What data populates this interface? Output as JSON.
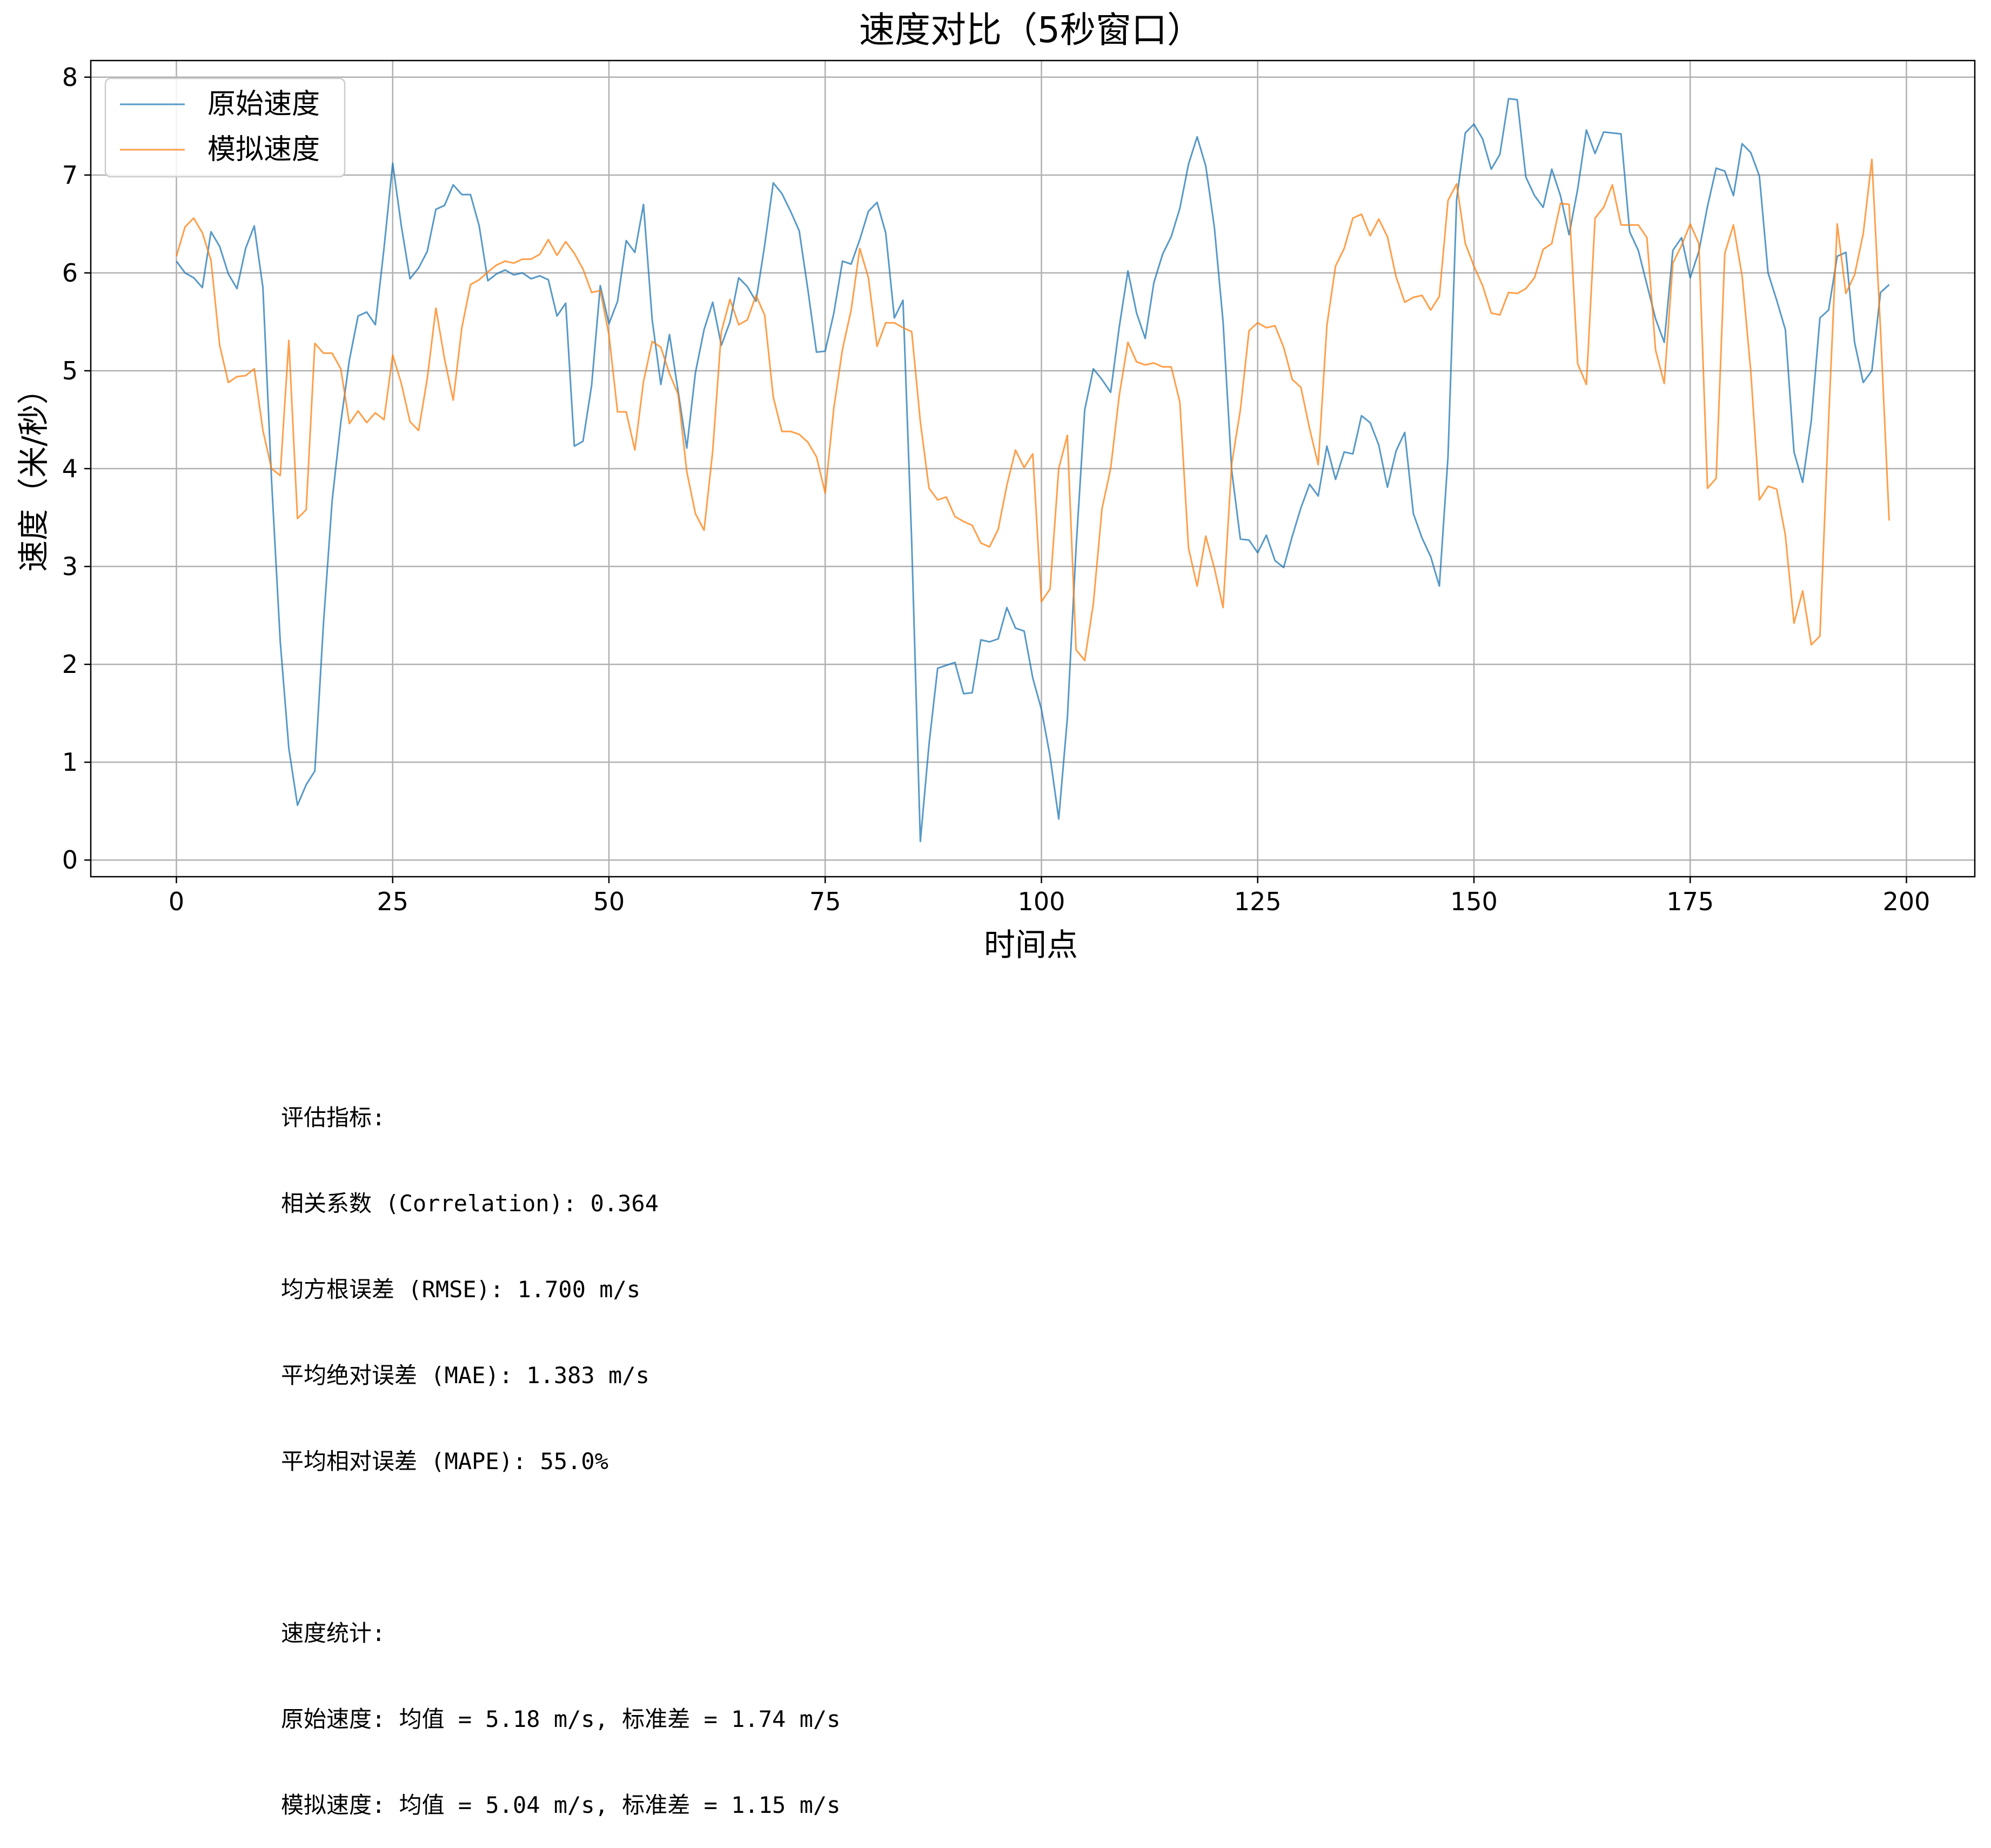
{
  "chart_data": {
    "type": "line",
    "title": "速度对比（5秒窗口）",
    "xlabel": "时间点",
    "ylabel": "速度（米/秒）",
    "xlim": [
      -9.9,
      207.9
    ],
    "ylim": [
      -0.17,
      8.17
    ],
    "xticks": [
      0,
      25,
      50,
      75,
      100,
      125,
      150,
      175,
      200
    ],
    "yticks": [
      0,
      1,
      2,
      3,
      4,
      5,
      6,
      7,
      8
    ],
    "grid": true,
    "legend_position": "top-left",
    "series": [
      {
        "name": "原始速度",
        "color": "#1f77b4",
        "values": [
          6.12,
          6.0,
          5.95,
          5.85,
          6.42,
          6.27,
          5.99,
          5.84,
          6.25,
          6.48,
          5.85,
          3.88,
          2.24,
          1.14,
          0.56,
          0.77,
          0.91,
          2.42,
          3.67,
          4.47,
          5.11,
          5.56,
          5.6,
          5.47,
          6.25,
          7.12,
          6.48,
          5.94,
          6.05,
          6.22,
          6.65,
          6.69,
          6.9,
          6.8,
          6.8,
          6.48,
          5.92,
          5.99,
          6.03,
          5.98,
          6.0,
          5.94,
          5.97,
          5.93,
          5.56,
          5.69,
          4.23,
          4.28,
          4.85,
          5.87,
          5.48,
          5.71,
          6.33,
          6.21,
          6.7,
          5.52,
          4.86,
          5.37,
          4.79,
          4.21,
          4.98,
          5.42,
          5.7,
          5.26,
          5.5,
          5.95,
          5.86,
          5.71,
          6.28,
          6.92,
          6.81,
          6.63,
          6.43,
          5.83,
          5.19,
          5.2,
          5.59,
          6.12,
          6.09,
          6.34,
          6.63,
          6.72,
          6.41,
          5.54,
          5.72,
          3.25,
          0.19,
          1.18,
          1.96,
          1.99,
          2.02,
          1.7,
          1.71,
          2.25,
          2.23,
          2.26,
          2.58,
          2.37,
          2.34,
          1.86,
          1.54,
          1.06,
          0.42,
          1.45,
          3.19,
          4.6,
          5.02,
          4.91,
          4.78,
          5.45,
          6.02,
          5.59,
          5.33,
          5.9,
          6.19,
          6.37,
          6.66,
          7.11,
          7.39,
          7.09,
          6.46,
          5.5,
          3.98,
          3.28,
          3.27,
          3.14,
          3.32,
          3.06,
          2.99,
          3.31,
          3.6,
          3.84,
          3.72,
          4.23,
          3.89,
          4.17,
          4.15,
          4.54,
          4.47,
          4.24,
          3.81,
          4.18,
          4.37,
          3.54,
          3.29,
          3.1,
          2.8,
          4.12,
          6.75,
          7.43,
          7.52,
          7.37,
          7.06,
          7.21,
          7.78,
          7.77,
          6.98,
          6.79,
          6.67,
          7.06,
          6.79,
          6.39,
          6.86,
          7.46,
          7.22,
          7.44,
          7.43,
          7.42,
          6.42,
          6.23,
          5.88,
          5.53,
          5.29,
          6.23,
          6.36,
          5.95,
          6.22,
          6.68,
          7.07,
          7.04,
          6.79,
          7.32,
          7.23,
          6.99,
          6.0,
          5.72,
          5.42,
          4.17,
          3.86,
          4.49,
          5.54,
          5.62,
          6.17,
          6.21,
          5.29,
          4.88,
          5.0,
          5.8,
          5.88
        ]
      },
      {
        "name": "模拟速度",
        "color": "#ff7f0e",
        "values": [
          6.17,
          6.47,
          6.56,
          6.41,
          6.13,
          5.26,
          4.88,
          4.94,
          4.95,
          5.02,
          4.39,
          4.0,
          3.93,
          5.31,
          3.49,
          3.58,
          5.28,
          5.18,
          5.18,
          5.02,
          4.46,
          4.59,
          4.47,
          4.57,
          4.5,
          5.16,
          4.87,
          4.48,
          4.39,
          4.92,
          5.64,
          5.12,
          4.7,
          5.44,
          5.88,
          5.93,
          6.01,
          6.08,
          6.12,
          6.1,
          6.14,
          6.14,
          6.19,
          6.34,
          6.18,
          6.32,
          6.2,
          6.04,
          5.8,
          5.82,
          5.37,
          4.58,
          4.58,
          4.19,
          4.89,
          5.3,
          5.24,
          4.97,
          4.76,
          3.97,
          3.54,
          3.37,
          4.18,
          5.4,
          5.73,
          5.47,
          5.52,
          5.77,
          5.57,
          4.73,
          4.38,
          4.38,
          4.35,
          4.27,
          4.12,
          3.75,
          4.62,
          5.22,
          5.62,
          6.25,
          5.95,
          5.25,
          5.49,
          5.49,
          5.44,
          5.4,
          4.48,
          3.8,
          3.68,
          3.71,
          3.51,
          3.46,
          3.42,
          3.24,
          3.2,
          3.38,
          3.83,
          4.19,
          4.01,
          4.15,
          2.64,
          2.77,
          4.0,
          4.34,
          2.15,
          2.04,
          2.62,
          3.59,
          4.0,
          4.75,
          5.29,
          5.09,
          5.06,
          5.08,
          5.04,
          5.04,
          4.68,
          3.19,
          2.8,
          3.31,
          2.98,
          2.58,
          4.05,
          4.6,
          5.41,
          5.49,
          5.44,
          5.46,
          5.24,
          4.91,
          4.83,
          4.41,
          4.04,
          5.46,
          6.07,
          6.25,
          6.56,
          6.6,
          6.38,
          6.55,
          6.37,
          5.96,
          5.7,
          5.75,
          5.77,
          5.62,
          5.76,
          6.74,
          6.91,
          6.3,
          6.07,
          5.87,
          5.59,
          5.57,
          5.8,
          5.79,
          5.84,
          5.95,
          6.24,
          6.3,
          6.71,
          6.7,
          5.07,
          4.86,
          6.56,
          6.67,
          6.9,
          6.49,
          6.49,
          6.49,
          6.36,
          5.21,
          4.87,
          6.1,
          6.28,
          6.5,
          6.3,
          3.8,
          3.9,
          6.2,
          6.49,
          5.97,
          5.0,
          3.68,
          3.82,
          3.79,
          3.32,
          2.42,
          2.75,
          2.2,
          2.29,
          4.49,
          6.5,
          5.79,
          5.98,
          6.4,
          7.16,
          5.42,
          3.47
        ]
      }
    ]
  },
  "metrics": {
    "header": "评估指标:",
    "lines": [
      "相关系数 (Correlation): 0.364",
      "均方根误差 (RMSE): 1.700 m/s",
      "平均绝对误差 (MAE): 1.383 m/s",
      "平均相对误差 (MAPE): 55.0%"
    ]
  },
  "stats": {
    "header": "速度统计:",
    "lines": [
      "原始速度: 均值 = 5.18 m/s, 标准差 = 1.74 m/s",
      "模拟速度: 均值 = 5.04 m/s, 标准差 = 1.15 m/s"
    ]
  }
}
